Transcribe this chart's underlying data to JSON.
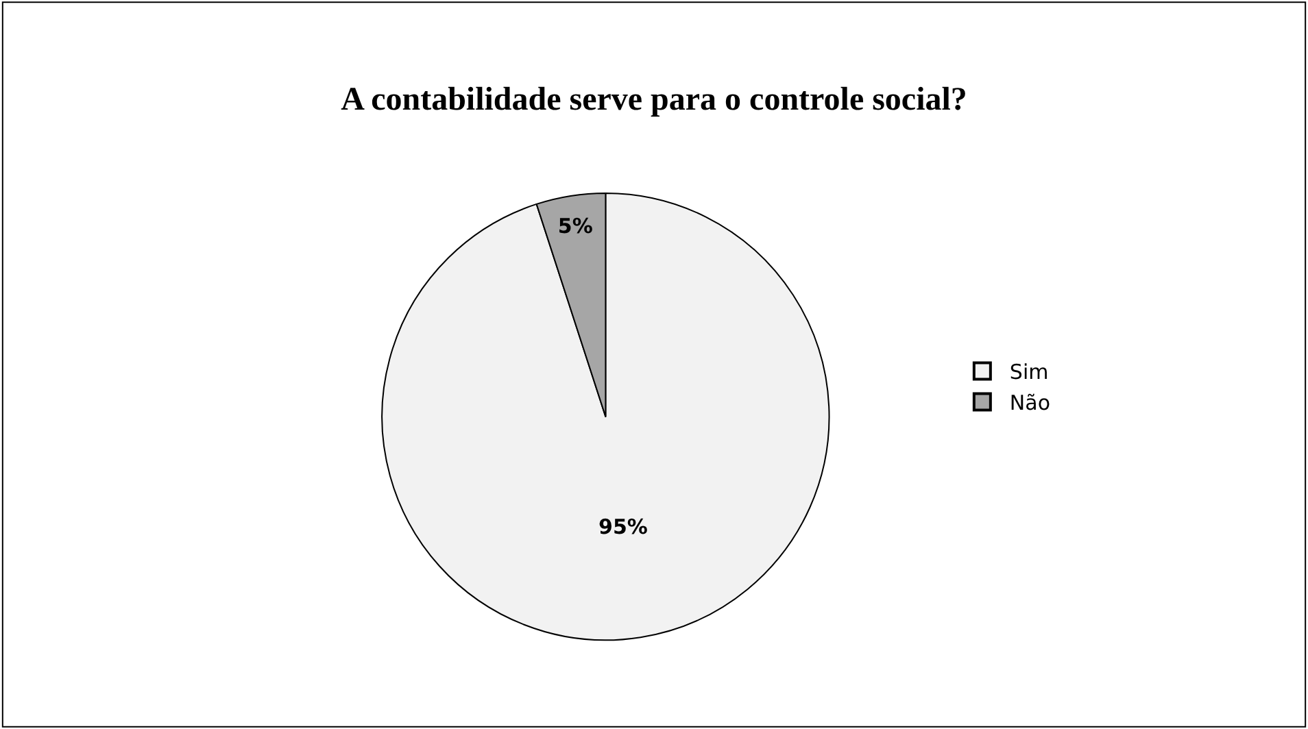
{
  "chart_data": {
    "type": "pie",
    "title": "A contabilidade serve para o controle social?",
    "categories": [
      "Sim",
      "Não"
    ],
    "values": [
      95,
      5
    ],
    "colors": [
      "#f2f2f2",
      "#a6a6a6"
    ],
    "value_labels": [
      "95%",
      "5%"
    ],
    "legend": "right"
  }
}
